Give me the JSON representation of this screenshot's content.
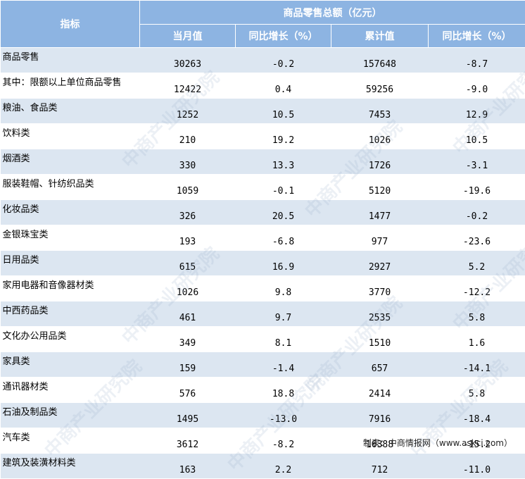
{
  "header": {
    "indicator_label": "指标",
    "group_title": "商品零售总额（亿元）",
    "col_month_value": "当月值",
    "col_month_yoy": "同比增长（%）",
    "col_cum_value": "累计值",
    "col_cum_yoy": "同比增长（%）"
  },
  "rows": [
    {
      "name": "商品零售",
      "month": "30263",
      "month_yoy": "-0.2",
      "cum": "157648",
      "cum_yoy": "-8.7"
    },
    {
      "name": "其中：限额以上单位商品零售",
      "month": "12422",
      "month_yoy": "0.4",
      "cum": "59256",
      "cum_yoy": "-9.0"
    },
    {
      "name": "粮油、食品类",
      "month": "1252",
      "month_yoy": "10.5",
      "cum": "7453",
      "cum_yoy": "12.9"
    },
    {
      "name": "饮料类",
      "month": "210",
      "month_yoy": "19.2",
      "cum": "1026",
      "cum_yoy": "10.5"
    },
    {
      "name": "烟酒类",
      "month": "330",
      "month_yoy": "13.3",
      "cum": "1726",
      "cum_yoy": "-3.1"
    },
    {
      "name": "服装鞋帽、针纺织品类",
      "month": "1059",
      "month_yoy": "-0.1",
      "cum": "5120",
      "cum_yoy": "-19.6"
    },
    {
      "name": "化妆品类",
      "month": "326",
      "month_yoy": "20.5",
      "cum": "1477",
      "cum_yoy": "-0.2"
    },
    {
      "name": "金银珠宝类",
      "month": "193",
      "month_yoy": "-6.8",
      "cum": "977",
      "cum_yoy": "-23.6"
    },
    {
      "name": "日用品类",
      "month": "615",
      "month_yoy": "16.9",
      "cum": "2927",
      "cum_yoy": "5.2"
    },
    {
      "name": "家用电器和音像器材类",
      "month": "1026",
      "month_yoy": "9.8",
      "cum": "3770",
      "cum_yoy": "-12.2"
    },
    {
      "name": "中西药品类",
      "month": "461",
      "month_yoy": "9.7",
      "cum": "2535",
      "cum_yoy": "5.8"
    },
    {
      "name": "文化办公用品类",
      "month": "349",
      "month_yoy": "8.1",
      "cum": "1510",
      "cum_yoy": "1.6"
    },
    {
      "name": "家具类",
      "month": "159",
      "month_yoy": "-1.4",
      "cum": "657",
      "cum_yoy": "-14.1"
    },
    {
      "name": "通讯器材类",
      "month": "576",
      "month_yoy": "18.8",
      "cum": "2414",
      "cum_yoy": "5.8"
    },
    {
      "name": "石油及制品类",
      "month": "1495",
      "month_yoy": "-13.0",
      "cum": "7916",
      "cum_yoy": "-18.4"
    },
    {
      "name": "汽车类",
      "month": "3612",
      "month_yoy": "-8.2",
      "cum": "16388",
      "cum_yoy": "-15.2"
    },
    {
      "name": "建筑及装潢材料类",
      "month": "163",
      "month_yoy": "2.2",
      "cum": "712",
      "cum_yoy": "-11.0"
    }
  ],
  "source": "制表：中商情报网（www.askci.com）",
  "watermark_text": "中商产业研究院",
  "colors": {
    "header_bg": "#8db4e2",
    "band_bg": "#dce6f1",
    "header_text": "#ffffff"
  }
}
